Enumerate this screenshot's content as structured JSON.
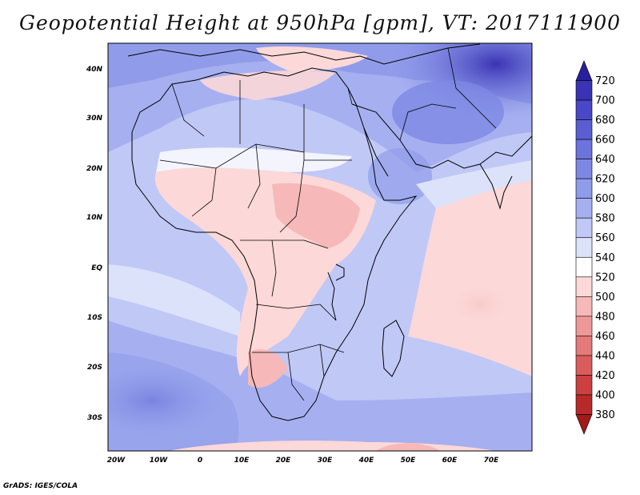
{
  "title": "Geopotential Height at 950hPa [gpm], VT: 2017111900",
  "credit": "GrADS: IGES/COLA",
  "map": {
    "lat_labels": [
      "40N",
      "30N",
      "20N",
      "10N",
      "EQ",
      "10S",
      "20S",
      "30S"
    ],
    "lon_labels": [
      "20W",
      "10W",
      "0",
      "10E",
      "20E",
      "30E",
      "40E",
      "50E",
      "60E",
      "70E"
    ]
  },
  "colorbar": {
    "levels": [
      "720",
      "700",
      "680",
      "660",
      "640",
      "620",
      "600",
      "580",
      "560",
      "540",
      "520",
      "500",
      "480",
      "460",
      "440",
      "420",
      "400",
      "380"
    ],
    "colors": [
      "#2a1f9a",
      "#3a33b4",
      "#4a48c6",
      "#5a5ed2",
      "#6b73dc",
      "#7d88e4",
      "#909cea",
      "#a6b0f0",
      "#c0c8f6",
      "#dde2fb",
      "#ffffff",
      "#fcd8d8",
      "#f6b8b8",
      "#ee9898",
      "#e57a7a",
      "#da5c5c",
      "#cc4040",
      "#b82a2a",
      "#a01a1a"
    ]
  }
}
